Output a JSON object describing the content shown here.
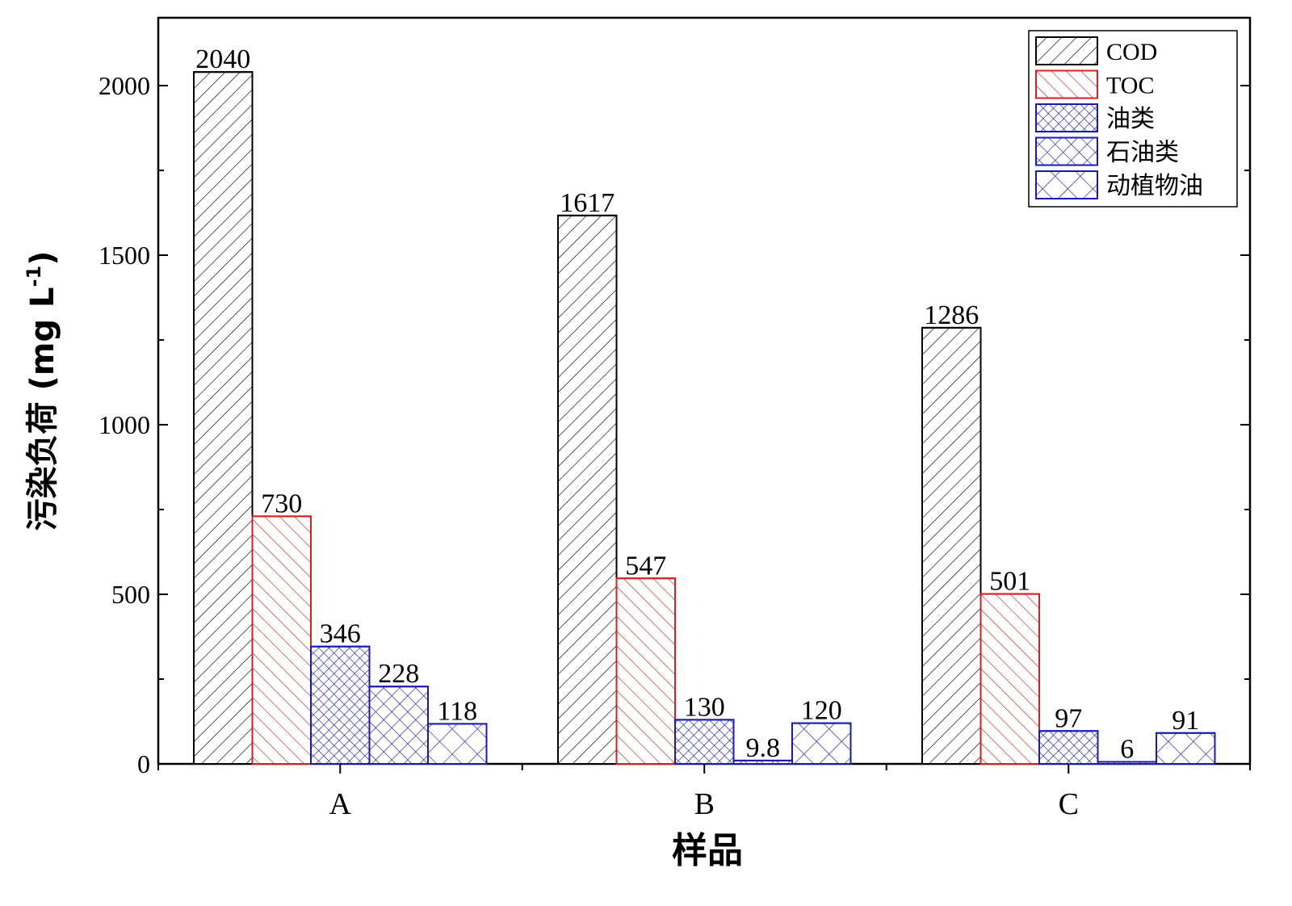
{
  "chart_data": {
    "type": "bar",
    "title": "",
    "xlabel": "样品",
    "ylabel": "污染负荷 (mg L",
    "ylabel_sup": "-1",
    "ylabel_suffix": ")",
    "categories": [
      "A",
      "B",
      "C"
    ],
    "ylim": [
      0,
      2200
    ],
    "yticks": [
      0,
      500,
      1000,
      1500,
      2000
    ],
    "grid": false,
    "legend_position": "top-right",
    "series": [
      {
        "name": "COD",
        "values": [
          2040,
          1617,
          1286
        ],
        "labels": [
          "2040",
          "1617",
          "1286"
        ],
        "color": "#000000",
        "pattern": "diag-up"
      },
      {
        "name": "TOC",
        "values": [
          730,
          547,
          501
        ],
        "labels": [
          "730",
          "547",
          "501"
        ],
        "color": "#d62020",
        "pattern": "diag-down"
      },
      {
        "name": "油类",
        "values": [
          346,
          130,
          97
        ],
        "labels": [
          "346",
          "130",
          "97"
        ],
        "color": "#1a1ab0",
        "pattern": "crosshatch-fine"
      },
      {
        "name": "石油类",
        "values": [
          228,
          9.8,
          6
        ],
        "labels": [
          "228",
          "9.8",
          "6"
        ],
        "color": "#1a1ab0",
        "pattern": "crosshatch-medium"
      },
      {
        "name": "动植物油",
        "values": [
          118,
          120,
          91
        ],
        "labels": [
          "118",
          "120",
          "91"
        ],
        "color": "#1a1ab0",
        "pattern": "crosshatch-coarse"
      }
    ]
  }
}
